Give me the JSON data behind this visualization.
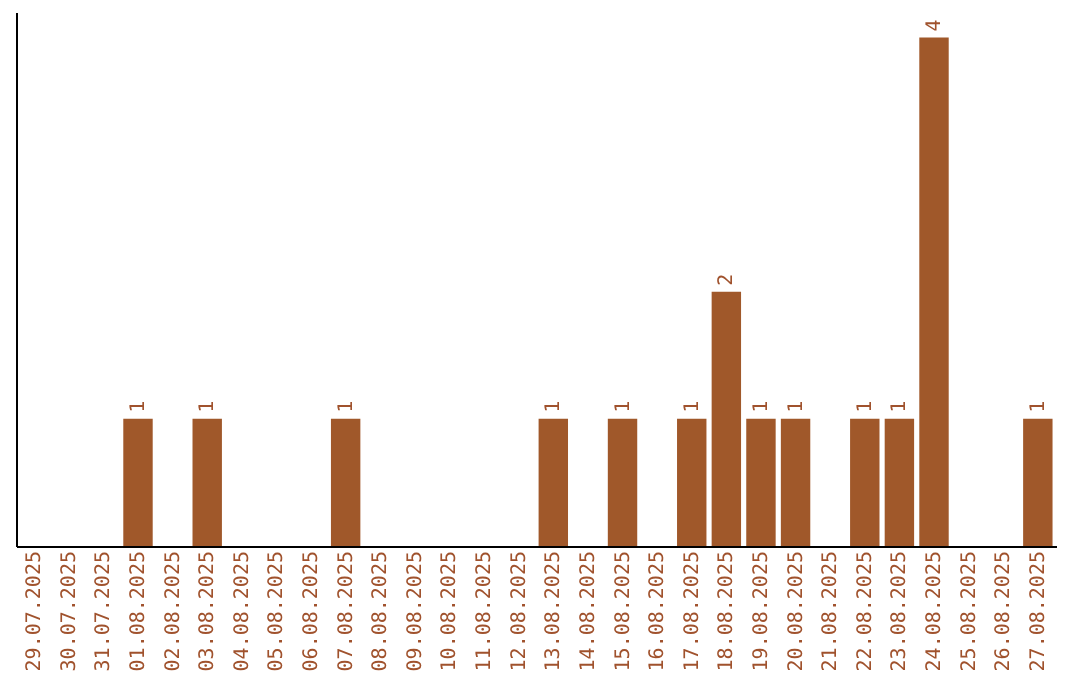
{
  "chart_data": {
    "type": "bar",
    "categories": [
      "29.07.2025",
      "30.07.2025",
      "31.07.2025",
      "01.08.2025",
      "02.08.2025",
      "03.08.2025",
      "04.08.2025",
      "05.08.2025",
      "06.08.2025",
      "07.08.2025",
      "08.08.2025",
      "09.08.2025",
      "10.08.2025",
      "11.08.2025",
      "12.08.2025",
      "13.08.2025",
      "14.08.2025",
      "15.08.2025",
      "16.08.2025",
      "17.08.2025",
      "18.08.2025",
      "19.08.2025",
      "20.08.2025",
      "21.08.2025",
      "22.08.2025",
      "23.08.2025",
      "24.08.2025",
      "25.08.2025",
      "26.08.2025",
      "27.08.2025"
    ],
    "values": [
      0,
      0,
      0,
      1,
      0,
      1,
      0,
      0,
      0,
      1,
      0,
      0,
      0,
      0,
      0,
      1,
      0,
      1,
      0,
      1,
      2,
      1,
      1,
      0,
      1,
      1,
      4,
      0,
      0,
      1
    ],
    "value_labels": [
      null,
      null,
      null,
      "1",
      null,
      "1",
      null,
      null,
      null,
      "1",
      null,
      null,
      null,
      null,
      null,
      "1",
      null,
      "1",
      null,
      "1",
      "2",
      "1",
      "1",
      null,
      "1",
      "1",
      "4",
      null,
      null,
      "1"
    ],
    "color": "#a0582a",
    "ylim": [
      0,
      4.2
    ],
    "tick_labels": "x",
    "grid": false
  }
}
